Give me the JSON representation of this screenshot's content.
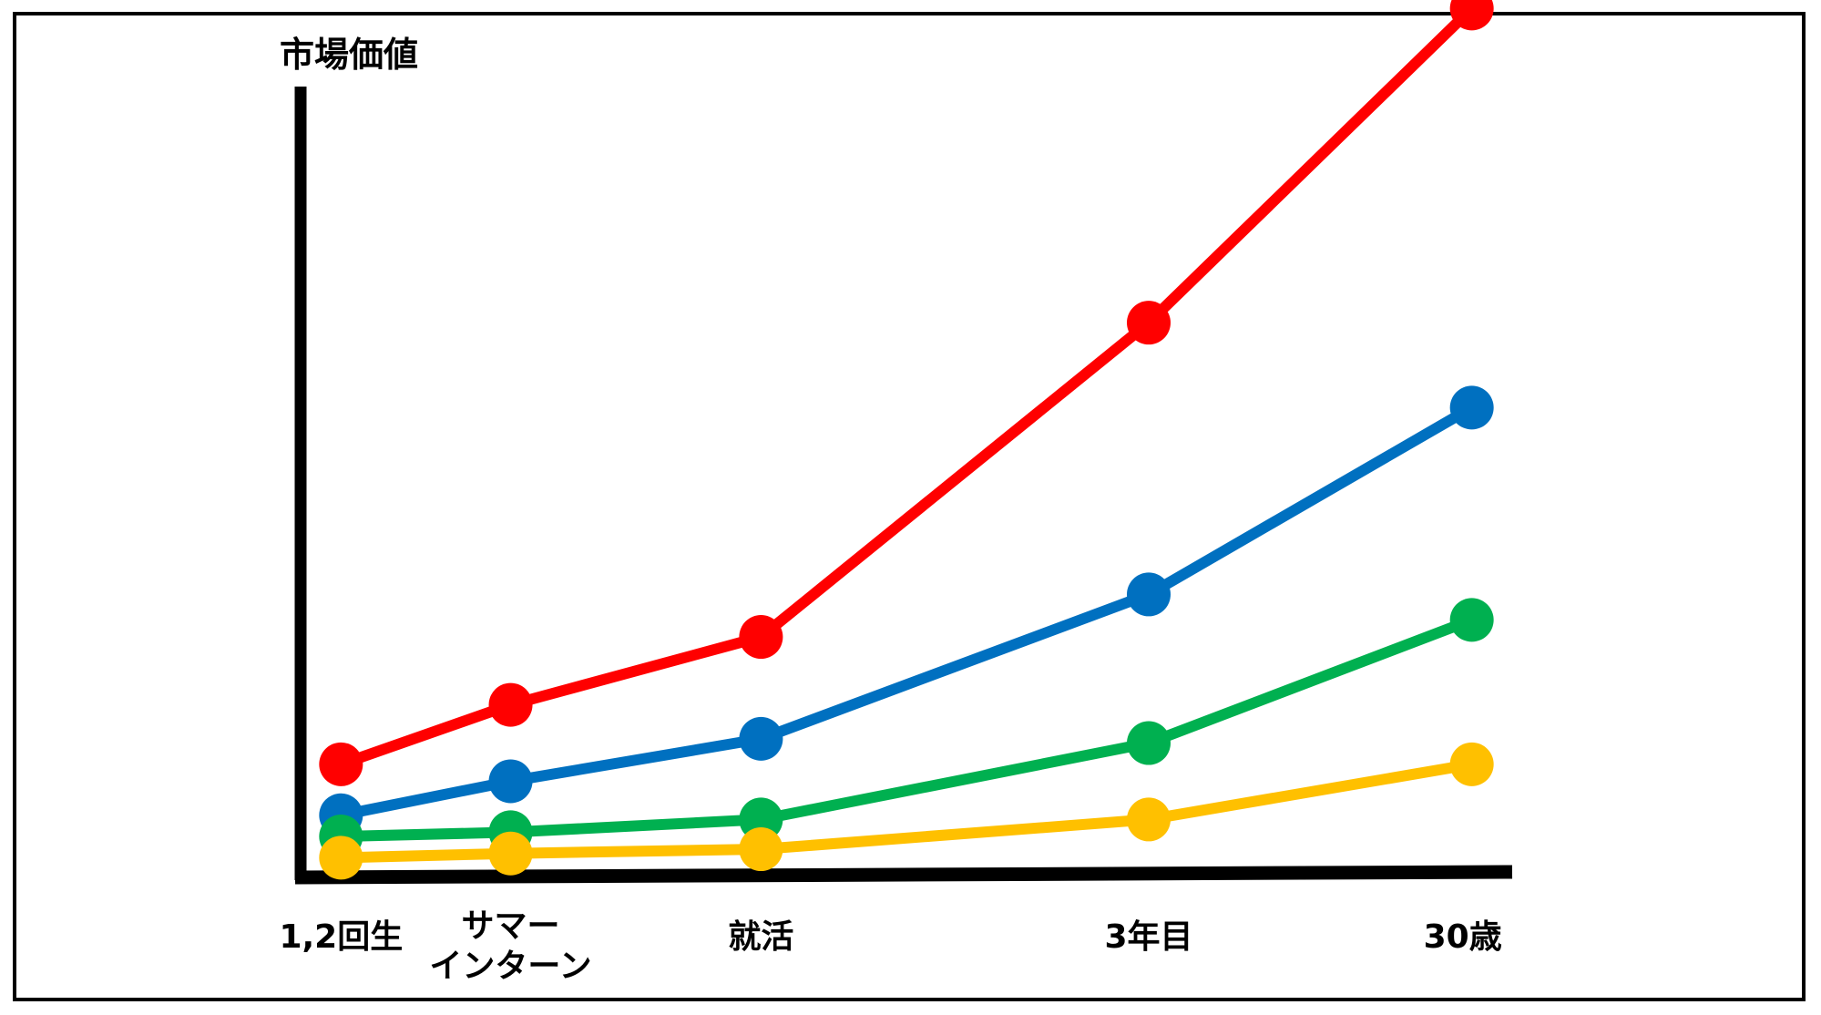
{
  "chart_data": {
    "type": "line",
    "title": "",
    "ylabel": "市場価値",
    "xlabel": "",
    "categories": [
      "1,2回生",
      "サマー\nインターン",
      "就活",
      "3年目",
      "30歳"
    ],
    "x": [
      0,
      1.05,
      2.6,
      5.0,
      7.0
    ],
    "xlim": [
      -0.25,
      7.25
    ],
    "ylim": [
      0,
      10.3
    ],
    "grid": false,
    "legend": "none",
    "series": [
      {
        "color": "#ff0000",
        "values": [
          1.3,
          2.0,
          2.8,
          6.5,
          10.2
        ]
      },
      {
        "color": "#0070c0",
        "values": [
          0.7,
          1.1,
          1.6,
          3.3,
          5.5
        ]
      },
      {
        "color": "#00b050",
        "values": [
          0.45,
          0.5,
          0.65,
          1.55,
          3.0
        ]
      },
      {
        "color": "#ffc000",
        "values": [
          0.2,
          0.25,
          0.3,
          0.65,
          1.3
        ]
      }
    ]
  }
}
